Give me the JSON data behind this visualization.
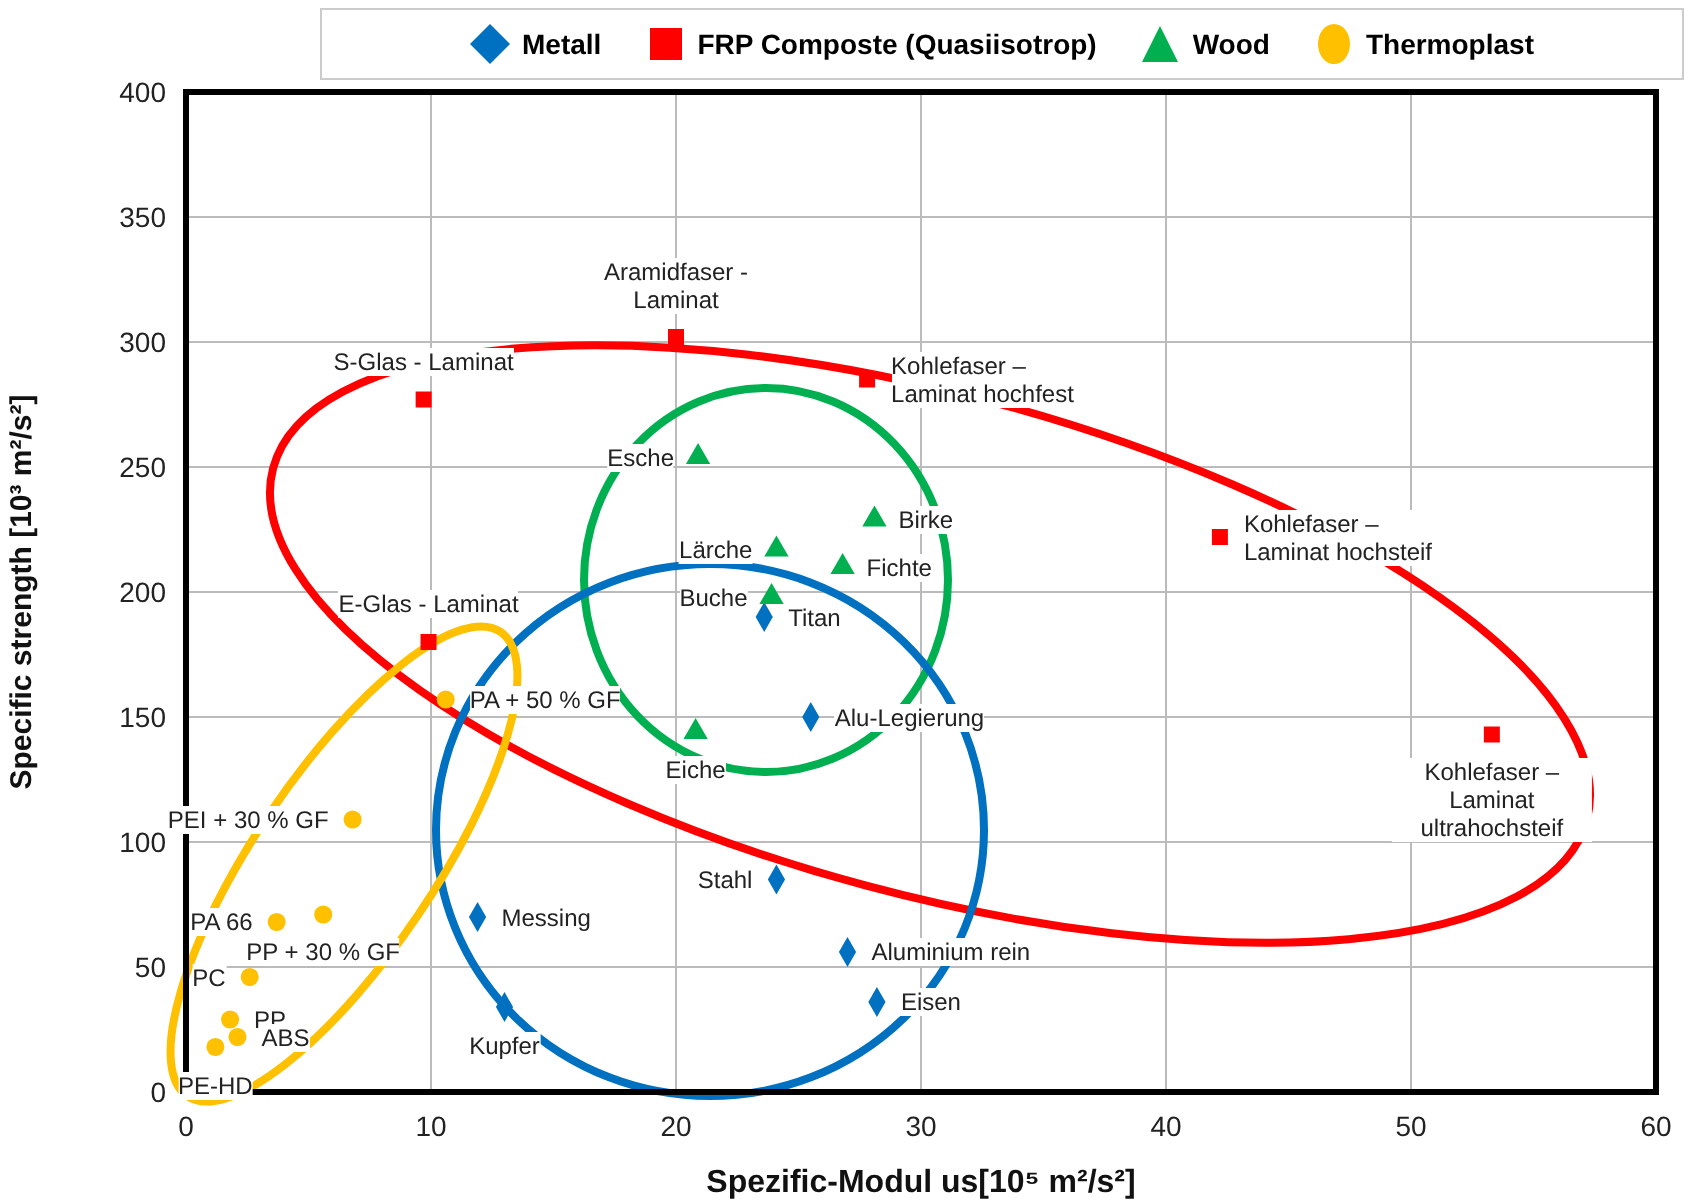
{
  "chart_data": {
    "type": "scatter",
    "xlabel": "Spezific-Modul us[10⁵ m²/s²]",
    "ylabel": "Specific strength [10³ m²/s²]",
    "xlim": [
      0,
      60
    ],
    "xticks": [
      0,
      10,
      20,
      30,
      40,
      50,
      60
    ],
    "ylim": [
      0,
      400
    ],
    "yticks": [
      0,
      50,
      100,
      150,
      200,
      250,
      300,
      350,
      400
    ],
    "grid": true,
    "legend": "top",
    "series": [
      {
        "name": "Metall",
        "color": "#0070c0",
        "marker": "diamond",
        "x": [
          23.6,
          25.5,
          24.1,
          11.9,
          13.0,
          27.0,
          28.2
        ],
        "values": [
          190,
          150,
          85,
          70,
          34,
          56,
          36
        ]
      },
      {
        "name": "FRP Composte (Quasiisotrop)",
        "color": "#ff0000",
        "marker": "square",
        "x": [
          20.0,
          9.7,
          27.8,
          42.2,
          53.3,
          9.9
        ],
        "values": [
          302,
          277,
          285,
          222,
          143,
          180
        ]
      },
      {
        "name": "Wood",
        "color": "#00b050",
        "marker": "triangle",
        "x": [
          20.9,
          28.1,
          24.1,
          26.8,
          23.9,
          20.8
        ],
        "values": [
          254,
          229,
          217,
          210,
          198,
          144
        ]
      },
      {
        "name": "Thermoplast",
        "color": "#ffc000",
        "marker": "circle",
        "x": [
          10.6,
          6.8,
          3.7,
          5.6,
          2.6,
          1.8,
          2.1,
          1.2
        ],
        "values": [
          157,
          109,
          68,
          71,
          46,
          29,
          22,
          18
        ]
      }
    ],
    "annotations": [
      {
        "text": "Titan",
        "x": 23.6,
        "y": 190
      },
      {
        "text": "Alu-Legierung",
        "x": 25.5,
        "y": 150
      },
      {
        "text": "Stahl",
        "x": 24.1,
        "y": 85
      },
      {
        "text": "Messing",
        "x": 11.9,
        "y": 70
      },
      {
        "text": "Kupfer",
        "x": 13.0,
        "y": 34
      },
      {
        "text": "Aluminium rein",
        "x": 27.0,
        "y": 56
      },
      {
        "text": "Eisen",
        "x": 28.2,
        "y": 36
      },
      {
        "text": "Aramidfaser - Laminat",
        "x": 20.0,
        "y": 302
      },
      {
        "text": "S-Glas - Laminat",
        "x": 9.7,
        "y": 277
      },
      {
        "text": "Kohlefaser – Laminat hochfest",
        "x": 27.8,
        "y": 285
      },
      {
        "text": "Kohlefaser – Laminat hochsteif",
        "x": 42.2,
        "y": 222
      },
      {
        "text": "Kohlefaser – Laminat ultrahochsteif",
        "x": 53.3,
        "y": 143
      },
      {
        "text": "E-Glas - Laminat",
        "x": 9.9,
        "y": 180
      },
      {
        "text": "Esche",
        "x": 20.9,
        "y": 254
      },
      {
        "text": "Birke",
        "x": 28.1,
        "y": 229
      },
      {
        "text": "Lärche",
        "x": 24.1,
        "y": 217
      },
      {
        "text": "Fichte",
        "x": 26.8,
        "y": 210
      },
      {
        "text": "Buche",
        "x": 23.9,
        "y": 198
      },
      {
        "text": "Eiche",
        "x": 20.8,
        "y": 144
      },
      {
        "text": "PA + 50 % GF",
        "x": 10.6,
        "y": 157
      },
      {
        "text": "PEI + 30 % GF",
        "x": 6.8,
        "y": 109
      },
      {
        "text": "PA 66",
        "x": 3.7,
        "y": 68
      },
      {
        "text": "PP + 30 % GF",
        "x": 5.6,
        "y": 71
      },
      {
        "text": "PC",
        "x": 2.6,
        "y": 46
      },
      {
        "text": "PP",
        "x": 1.8,
        "y": 29
      },
      {
        "text": "ABS",
        "x": 2.1,
        "y": 22
      },
      {
        "text": "PE-HD",
        "x": 1.2,
        "y": 18
      }
    ]
  }
}
